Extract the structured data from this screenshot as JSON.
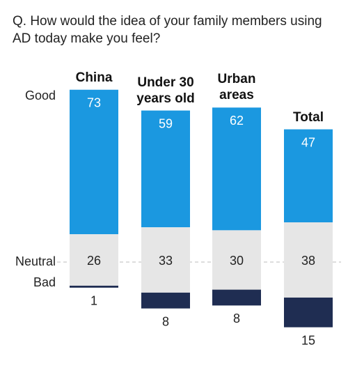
{
  "chart_data": {
    "type": "diverging-stacked-bar",
    "title": "Q. How would the idea of your family members using AD today make you feel?",
    "categories": [
      "China",
      "Under 30 years old",
      "Urban areas",
      "Total"
    ],
    "series": [
      {
        "name": "Good",
        "color": "#1b98e0",
        "values": [
          73,
          59,
          62,
          47
        ]
      },
      {
        "name": "Neutral",
        "color": "#e6e6e6",
        "values": [
          26,
          33,
          30,
          38
        ]
      },
      {
        "name": "Bad",
        "color": "#1f2d52",
        "values": [
          1,
          8,
          8,
          15
        ]
      }
    ]
  }
}
